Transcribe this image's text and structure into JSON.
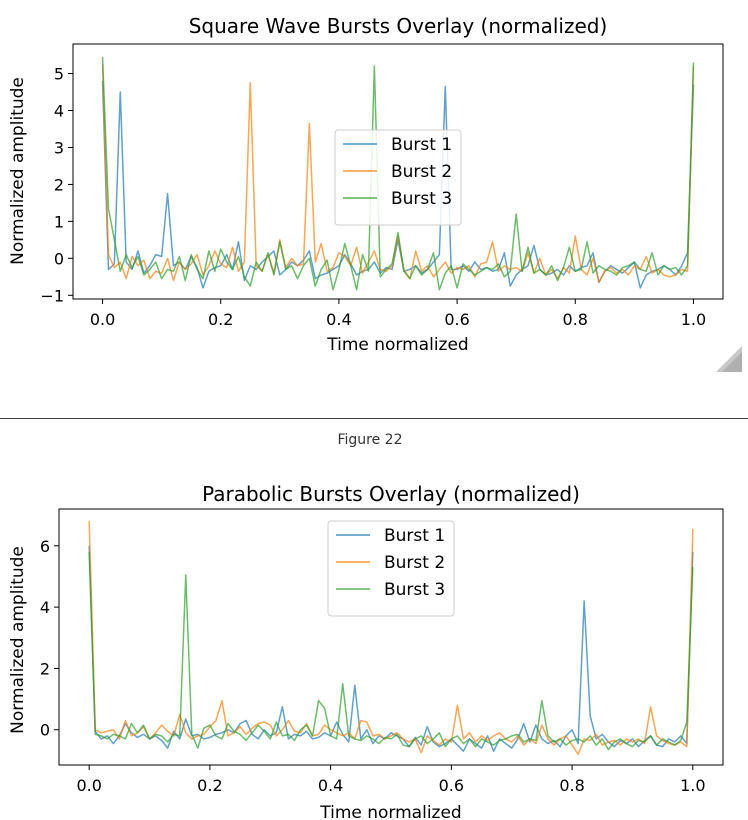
{
  "figure_caption": "Figure 22",
  "colors": {
    "burst_1": "#1f77b4",
    "burst_2": "#ff7f0e",
    "burst_3": "#2ca02c"
  },
  "chart_data": [
    {
      "type": "line",
      "title": "Square Wave Bursts Overlay (normalized)",
      "xlabel": "Time normalized",
      "ylabel": "Normalized amplitude",
      "xlim": [
        -0.05,
        1.05
      ],
      "ylim": [
        -1.1,
        5.8
      ],
      "xticks": [
        0.0,
        0.2,
        0.4,
        0.6,
        0.8,
        1.0
      ],
      "xtick_labels": [
        "0.0",
        "0.2",
        "0.4",
        "0.6",
        "0.8",
        "1.0"
      ],
      "yticks": [
        -1,
        0,
        1,
        2,
        3,
        4,
        5
      ],
      "ytick_labels": [
        "−1",
        "0",
        "1",
        "2",
        "3",
        "4",
        "5"
      ],
      "legend_placement": "center",
      "x_range": [
        0,
        1
      ],
      "series": [
        {
          "name": "Burst 1",
          "values": [
            4.8,
            -0.3,
            -0.15,
            4.5,
            -0.1,
            -0.3,
            0.2,
            -0.4,
            -0.2,
            0.1,
            0.05,
            1.75,
            -0.2,
            -0.1,
            -0.3,
            0.05,
            -0.25,
            -0.8,
            -0.35,
            -0.25,
            -0.2,
            0.1,
            -0.3,
            0.45,
            -0.6,
            -0.2,
            -0.3,
            -0.1,
            0.05,
            0.2,
            -0.45,
            -0.3,
            -0.1,
            -0.2,
            -0.05,
            0.2,
            -0.55,
            -0.45,
            -0.4,
            -0.3,
            -0.2,
            0.1,
            -0.15,
            -0.45,
            -0.35,
            -0.3,
            -0.1,
            -0.4,
            -0.25,
            -0.3,
            0.5,
            -0.35,
            -0.3,
            -0.2,
            -0.4,
            -0.3,
            -0.1,
            0.1,
            4.65,
            -0.3,
            -0.3,
            -0.2,
            -0.35,
            -0.1,
            -0.3,
            -0.25,
            -0.35,
            -0.3,
            0.15,
            -0.75,
            -0.45,
            -0.3,
            -0.2,
            0.35,
            -0.3,
            -0.45,
            -0.4,
            -0.3,
            -0.45,
            -0.2,
            -0.35,
            -0.25,
            -0.2,
            0.15,
            -0.65,
            -0.35,
            -0.2,
            -0.3,
            -0.4,
            -0.25,
            -0.1,
            -0.8,
            -0.45,
            -0.35,
            -0.3,
            -0.2,
            -0.3,
            -0.45,
            -0.2,
            0.15,
            4.7
          ]
        },
        {
          "name": "Burst 2",
          "values": [
            5.25,
            0.1,
            -0.25,
            -0.1,
            -0.55,
            0.05,
            -0.2,
            -0.05,
            -0.55,
            -0.35,
            -0.4,
            0.0,
            -0.6,
            -0.1,
            -0.3,
            -0.15,
            0.1,
            -0.45,
            -0.2,
            0.2,
            -0.15,
            -0.25,
            0.3,
            -0.35,
            -0.1,
            4.75,
            -0.2,
            -0.35,
            0.1,
            -0.4,
            0.5,
            -0.25,
            0.0,
            -0.2,
            -0.15,
            3.65,
            -0.1,
            0.4,
            -0.35,
            -0.25,
            0.15,
            0.05,
            -0.2,
            0.3,
            -0.4,
            -0.1,
            0.2,
            -0.3,
            -0.35,
            -0.2,
            0.6,
            -0.3,
            -0.55,
            0.2,
            -0.35,
            -0.2,
            -0.5,
            -0.3,
            -0.1,
            -0.4,
            -0.25,
            -0.3,
            -0.2,
            -0.5,
            -0.15,
            -0.1,
            0.45,
            -0.35,
            -0.2,
            -0.3,
            -0.25,
            -0.35,
            0.15,
            -0.4,
            0.0,
            -0.45,
            -0.3,
            -0.55,
            -0.25,
            -0.4,
            0.6,
            -0.3,
            -0.45,
            0.0,
            -0.65,
            -0.35,
            -0.25,
            -0.4,
            -0.3,
            -0.45,
            -0.2,
            -0.3,
            0.05,
            -0.4,
            -0.3,
            -0.45,
            -0.5,
            -0.45,
            -0.3,
            -0.35,
            5.2
          ]
        },
        {
          "name": "Burst 3",
          "values": [
            5.45,
            1.35,
            0.5,
            -0.35,
            0.1,
            -0.25,
            0.05,
            -0.45,
            -0.3,
            -0.1,
            -0.55,
            -0.3,
            -0.35,
            0.05,
            -0.6,
            0.1,
            -0.3,
            -0.55,
            0.2,
            -0.35,
            0.25,
            -0.1,
            -0.3,
            0.05,
            -0.5,
            -0.75,
            -0.1,
            -0.35,
            0.15,
            -0.45,
            0.45,
            -0.3,
            -0.2,
            -0.55,
            -0.2,
            0.0,
            -0.75,
            -0.3,
            -0.05,
            -0.85,
            -0.3,
            0.4,
            -0.2,
            -0.85,
            0.1,
            -0.35,
            5.2,
            -0.5,
            -0.3,
            -0.15,
            0.7,
            -0.35,
            -0.55,
            -0.2,
            -0.45,
            -0.3,
            0.15,
            -0.85,
            -0.4,
            -0.2,
            -0.8,
            -0.15,
            -0.3,
            -0.45,
            -0.35,
            -0.25,
            -0.3,
            -0.15,
            -0.5,
            -0.35,
            1.2,
            -0.35,
            0.3,
            -0.4,
            -0.3,
            -0.45,
            -0.2,
            -0.6,
            -0.25,
            0.3,
            -0.35,
            -0.3,
            0.45,
            -0.4,
            -0.2,
            -0.3,
            -0.35,
            -0.45,
            -0.25,
            -0.2,
            -0.1,
            -0.3,
            -0.35,
            0.15,
            -0.45,
            -0.2,
            -0.3,
            -0.25,
            -0.45,
            -0.2,
            5.3
          ]
        }
      ]
    },
    {
      "type": "line",
      "title": "Parabolic Bursts Overlay (normalized)",
      "xlabel": "Time normalized",
      "ylabel": "Normalized amplitude",
      "xlim": [
        -0.05,
        1.05
      ],
      "ylim": [
        -1.15,
        7.2
      ],
      "xticks": [
        0.0,
        0.2,
        0.4,
        0.6,
        0.8,
        1.0
      ],
      "xtick_labels": [
        "0.0",
        "0.2",
        "0.4",
        "0.6",
        "0.8",
        "1.0"
      ],
      "yticks": [
        0,
        2,
        4,
        6
      ],
      "ytick_labels": [
        "0",
        "2",
        "4",
        "6"
      ],
      "legend_placement": "upper center",
      "x_range": [
        0,
        1
      ],
      "series": [
        {
          "name": "Burst 1",
          "values": [
            6.0,
            -0.05,
            -0.3,
            -0.2,
            -0.45,
            -0.2,
            0.2,
            -0.1,
            -0.25,
            -0.15,
            -0.3,
            -0.2,
            -0.35,
            -0.6,
            -0.05,
            -0.3,
            0.35,
            -0.2,
            -0.15,
            -0.3,
            -0.25,
            -0.15,
            -0.1,
            0.0,
            -0.1,
            0.2,
            0.3,
            -0.15,
            -0.3,
            0.0,
            -0.2,
            -0.1,
            0.75,
            -0.3,
            -0.15,
            -0.2,
            -0.05,
            -0.3,
            -0.25,
            -0.1,
            -0.2,
            0.25,
            -0.15,
            -0.4,
            1.45,
            -0.3,
            0.0,
            -0.45,
            -0.2,
            -0.3,
            -0.1,
            -0.2,
            -0.3,
            -0.55,
            -0.25,
            -0.5,
            0.1,
            -0.4,
            -0.55,
            -0.45,
            -0.3,
            -0.5,
            -0.7,
            -0.3,
            -0.45,
            -0.6,
            -0.2,
            -0.7,
            -0.3,
            -0.45,
            -0.6,
            -0.3,
            0.2,
            -0.4,
            0.15,
            -0.3,
            -0.45,
            -0.35,
            -0.55,
            -0.2,
            0.0,
            -0.45,
            4.2,
            0.45,
            -0.3,
            -0.15,
            -0.4,
            -0.55,
            -0.35,
            -0.45,
            -0.3,
            -0.55,
            -0.35,
            -0.2,
            -0.5,
            -0.55,
            -0.3,
            -0.4,
            -0.2,
            -0.45,
            5.8
          ]
        },
        {
          "name": "Burst 2",
          "values": [
            6.8,
            0.0,
            -0.1,
            -0.05,
            0.0,
            -0.3,
            0.3,
            -0.2,
            -0.1,
            0.1,
            -0.3,
            -0.1,
            0.15,
            -0.05,
            -0.2,
            0.5,
            -0.1,
            -0.3,
            -0.2,
            -0.15,
            0.1,
            0.3,
            0.95,
            -0.2,
            -0.1,
            0.1,
            -0.15,
            0.05,
            0.2,
            0.25,
            0.15,
            -0.2,
            0.0,
            0.3,
            -0.05,
            -0.1,
            0.2,
            -0.2,
            -0.15,
            0.15,
            0.0,
            -0.1,
            -0.2,
            -0.1,
            -0.3,
            0.3,
            0.25,
            -0.2,
            -0.15,
            -0.3,
            -0.2,
            -0.1,
            -0.3,
            -0.4,
            -0.3,
            -0.75,
            -0.2,
            -0.35,
            -0.5,
            -0.3,
            -0.4,
            0.8,
            -0.3,
            -0.1,
            -0.4,
            -0.2,
            -0.35,
            -0.2,
            -0.1,
            -0.3,
            -0.4,
            -0.2,
            -0.5,
            -0.3,
            -0.45,
            0.15,
            -0.3,
            -0.5,
            -0.3,
            -0.2,
            -0.5,
            -0.8,
            -0.3,
            -0.35,
            -0.15,
            -0.5,
            -0.4,
            -0.35,
            -0.5,
            -0.3,
            -0.4,
            -0.3,
            -0.45,
            0.75,
            -0.2,
            -0.35,
            -0.45,
            -0.5,
            -0.4,
            -0.55,
            6.55
          ]
        },
        {
          "name": "Burst 3",
          "values": [
            5.8,
            -0.15,
            -0.2,
            -0.3,
            -0.15,
            -0.2,
            -0.3,
            0.2,
            -0.1,
            0.15,
            -0.3,
            -0.15,
            -0.2,
            -0.4,
            -0.15,
            -0.2,
            5.05,
            -0.15,
            -0.6,
            0.05,
            0.15,
            -0.2,
            -0.3,
            0.2,
            -0.05,
            -0.15,
            -0.35,
            -0.1,
            0.15,
            -0.05,
            -0.3,
            0.25,
            -0.2,
            -0.15,
            -0.35,
            0.0,
            0.15,
            -0.2,
            0.95,
            0.7,
            -0.2,
            -0.3,
            1.5,
            -0.2,
            -0.3,
            -0.35,
            -0.2,
            -0.3,
            -0.45,
            -0.25,
            -0.3,
            -0.15,
            -0.5,
            -0.55,
            -0.3,
            -0.2,
            -0.45,
            -0.3,
            -0.1,
            -0.55,
            -0.3,
            -0.2,
            -0.45,
            -0.3,
            -0.55,
            -0.3,
            -0.4,
            -0.5,
            -0.35,
            -0.3,
            -0.2,
            -0.15,
            -0.4,
            -0.3,
            -0.35,
            0.95,
            -0.2,
            -0.4,
            -0.3,
            -0.5,
            -0.35,
            -0.3,
            -0.4,
            -0.2,
            -0.5,
            -0.3,
            -0.65,
            -0.4,
            -0.3,
            -0.45,
            -0.55,
            -0.35,
            -0.4,
            -0.2,
            -0.5,
            -0.3,
            -0.4,
            -0.5,
            -0.35,
            0.25,
            5.3
          ]
        }
      ]
    }
  ]
}
